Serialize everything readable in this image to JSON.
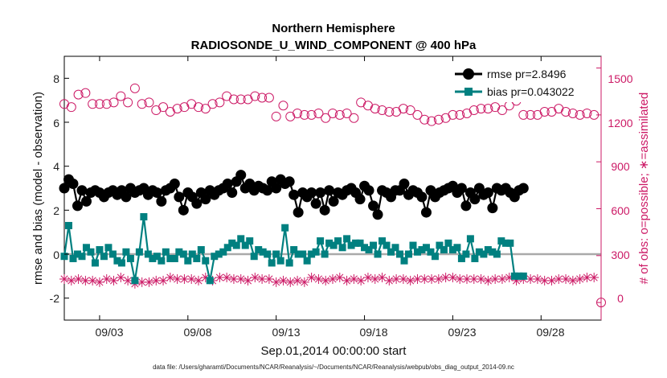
{
  "chart_data": {
    "type": "line",
    "title": "Northern Hemisphere",
    "subtitle": "RADIOSONDE_U_WIND_COMPONENT @ 400 hPa",
    "xlabel": "Sep.01,2014 00:00:00 start",
    "ylabel_left": "rmse and bias (model - observation)",
    "ylabel_right": "# of obs: o=possible; ∗=assimilated",
    "xlim": [
      1.0,
      31.4
    ],
    "ylim_left": [
      -3,
      9
    ],
    "ylim_right": [
      -112.5,
      1575
    ],
    "x_ticks": [
      3,
      8,
      13,
      18,
      23,
      28
    ],
    "x_tick_labels": [
      "09/03",
      "09/08",
      "09/13",
      "09/18",
      "09/23",
      "09/28"
    ],
    "y_ticks_left": [
      -2,
      0,
      2,
      4,
      6,
      8
    ],
    "y_tick_labels_left": [
      "-2",
      "0",
      "2",
      "4",
      "6",
      "8"
    ],
    "y_ticks_right": [
      0,
      300,
      600,
      900,
      1200,
      1500
    ],
    "y_tick_labels_right": [
      "0",
      "300",
      "600",
      "900",
      "1200",
      "1500"
    ],
    "x_start": 1.0,
    "x_step": 0.25,
    "series": [
      {
        "name": "rmse",
        "legend": "rmse pr=2.8496",
        "color": "#000000",
        "marker": "circle",
        "values": [
          3.0,
          3.4,
          3.2,
          2.2,
          2.9,
          2.4,
          2.8,
          2.9,
          2.8,
          2.6,
          2.8,
          2.9,
          2.7,
          2.9,
          2.6,
          3.0,
          2.8,
          2.9,
          3.0,
          2.7,
          2.9,
          2.8,
          2.4,
          2.9,
          3.0,
          3.2,
          2.6,
          2.0,
          2.8,
          2.6,
          2.3,
          2.8,
          2.5,
          2.9,
          2.7,
          2.9,
          3.0,
          3.2,
          2.8,
          3.3,
          3.6,
          3.0,
          3.2,
          2.9,
          3.1,
          3.0,
          2.9,
          3.3,
          3.0,
          3.4,
          3.2,
          3.3,
          2.7,
          1.9,
          2.8,
          2.6,
          2.8,
          2.3,
          2.8,
          2.0,
          2.9,
          2.4,
          2.8,
          2.7,
          2.9,
          3.0,
          2.8,
          2.5,
          3.1,
          2.9,
          2.2,
          1.8,
          2.9,
          2.8,
          2.6,
          2.9,
          2.9,
          3.2,
          2.7,
          2.9,
          2.8,
          2.6,
          1.9,
          2.9,
          2.6,
          2.8,
          2.9,
          3.0,
          3.1,
          2.8,
          3.0,
          2.2,
          2.8,
          2.5,
          3.0,
          2.7,
          2.8,
          2.1,
          3.0,
          2.9,
          3.0,
          2.8,
          2.6,
          2.9,
          3.0
        ],
        "pr": "2.8496"
      },
      {
        "name": "bias",
        "legend": "bias pr=0.043022",
        "color": "#008080",
        "marker": "square",
        "values": [
          -0.1,
          1.3,
          -0.2,
          0.0,
          -0.1,
          0.3,
          0.1,
          -0.4,
          0.2,
          -0.1,
          0.3,
          0.0,
          -0.3,
          -0.4,
          0.1,
          -0.2,
          -1.2,
          0.1,
          1.7,
          0.0,
          -0.2,
          -0.1,
          -0.3,
          0.1,
          -0.2,
          -0.2,
          0.1,
          0.0,
          -0.3,
          0.0,
          -0.2,
          0.2,
          -0.3,
          -1.2,
          -0.1,
          0.0,
          0.1,
          0.3,
          0.5,
          0.4,
          0.7,
          0.4,
          0.6,
          -0.1,
          0.2,
          0.1,
          0.0,
          -0.4,
          0.0,
          -0.3,
          1.2,
          -0.4,
          0.2,
          0.0,
          0.0,
          -0.3,
          0.0,
          0.1,
          0.6,
          0.0,
          0.5,
          0.4,
          0.6,
          0.3,
          0.7,
          0.4,
          0.5,
          0.5,
          0.3,
          0.2,
          0.4,
          0.0,
          0.6,
          0.4,
          0.1,
          0.3,
          0.0,
          -0.3,
          0.0,
          0.4,
          0.1,
          0.2,
          0.3,
          0.1,
          -0.1,
          0.4,
          0.2,
          0.5,
          0.2,
          0.3,
          -0.2,
          0.0,
          0.7,
          -0.2,
          0.1,
          0.0,
          0.2,
          0.1,
          0.0,
          0.6,
          0.5,
          0.5,
          -1.0,
          -1.0,
          -1.0
        ],
        "pr": "0.043022"
      },
      {
        "name": "obs_possible",
        "color": "#cc1a66",
        "marker": "open-circle",
        "axis": "right",
        "values": [
          1270,
          1250,
          1330,
          1340,
          1270,
          1270,
          1270,
          1280,
          1320,
          1280,
          1370,
          1270,
          1280,
          1230,
          1250,
          1220,
          1240,
          1250,
          1270,
          1250,
          1240,
          1270,
          1280,
          1320,
          1300,
          1300,
          1300,
          1320,
          1310,
          1310,
          1190,
          1260,
          1190,
          1210,
          1200,
          1200,
          1210,
          1180,
          1210,
          1200,
          1210,
          1180,
          1280,
          1260,
          1240,
          1230,
          1220,
          1220,
          1240,
          1230,
          1200,
          1170,
          1160,
          1170,
          1180,
          1200,
          1200,
          1210,
          1230,
          1240,
          1240,
          1250,
          1230,
          1260,
          1290,
          1200,
          1200,
          1200,
          1220,
          1220,
          1240,
          1220,
          1210,
          1200,
          1210,
          1200
        ],
        "start": 1.0,
        "step": 0.4
      },
      {
        "name": "obs_assimilated",
        "color": "#cc1a66",
        "marker": "asterisk",
        "axis": "right",
        "values": [
          150,
          140,
          150,
          140,
          140,
          130,
          150,
          140,
          160,
          140,
          120,
          130,
          130,
          140,
          140,
          160,
          150,
          150,
          150,
          140,
          160,
          140,
          160,
          160,
          150,
          150,
          140,
          160,
          150,
          150,
          130,
          140,
          130,
          140,
          130,
          160,
          150,
          140,
          150,
          160,
          140,
          150,
          140,
          160,
          150,
          160,
          140,
          150,
          150,
          140,
          150,
          150,
          150,
          150,
          160,
          160,
          150,
          150,
          150,
          150,
          140,
          150,
          150,
          160,
          140,
          150,
          150,
          150,
          140,
          140,
          150,
          150,
          140,
          150,
          160,
          160
        ],
        "start": 1.0,
        "step": 0.4,
        "last_value": 0
      }
    ],
    "zero_line": 0,
    "legend_position": "top-right"
  },
  "footer": {
    "data_file": "data file: /Users/gharamti/Documents/NCAR/Reanalysis/~/Documents/NCAR/Reanalysis/webpub/obs_diag_output_2014-09.nc"
  }
}
